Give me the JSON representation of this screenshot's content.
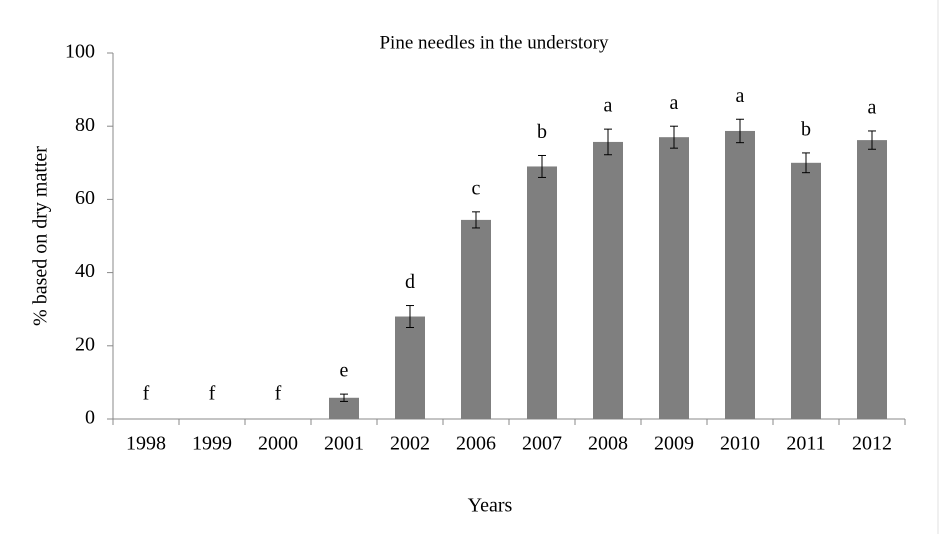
{
  "chart_data": {
    "type": "bar",
    "title": "Pine needles in the understory",
    "x_label": "Years",
    "y_label": "% based on dry matter",
    "categories": [
      "1998",
      "1999",
      "2000",
      "2001",
      "2002",
      "2006",
      "2007",
      "2008",
      "2009",
      "2010",
      "2011",
      "2012"
    ],
    "values": [
      0,
      0,
      0,
      5.8,
      28,
      54.4,
      69,
      75.7,
      77,
      78.7,
      70,
      76.2
    ],
    "errors": [
      null,
      null,
      null,
      1,
      3,
      2.2,
      3,
      3.5,
      3,
      3.2,
      2.7,
      2.5
    ],
    "annotations": [
      "f",
      "f",
      "f",
      "e",
      "d",
      "c",
      "b",
      "a",
      "a",
      "a",
      "b",
      "a"
    ],
    "color": "#7f7f7f",
    "ylim": [
      0,
      100
    ],
    "yticks": [
      0,
      20,
      40,
      60,
      80,
      100
    ],
    "grid": false
  }
}
